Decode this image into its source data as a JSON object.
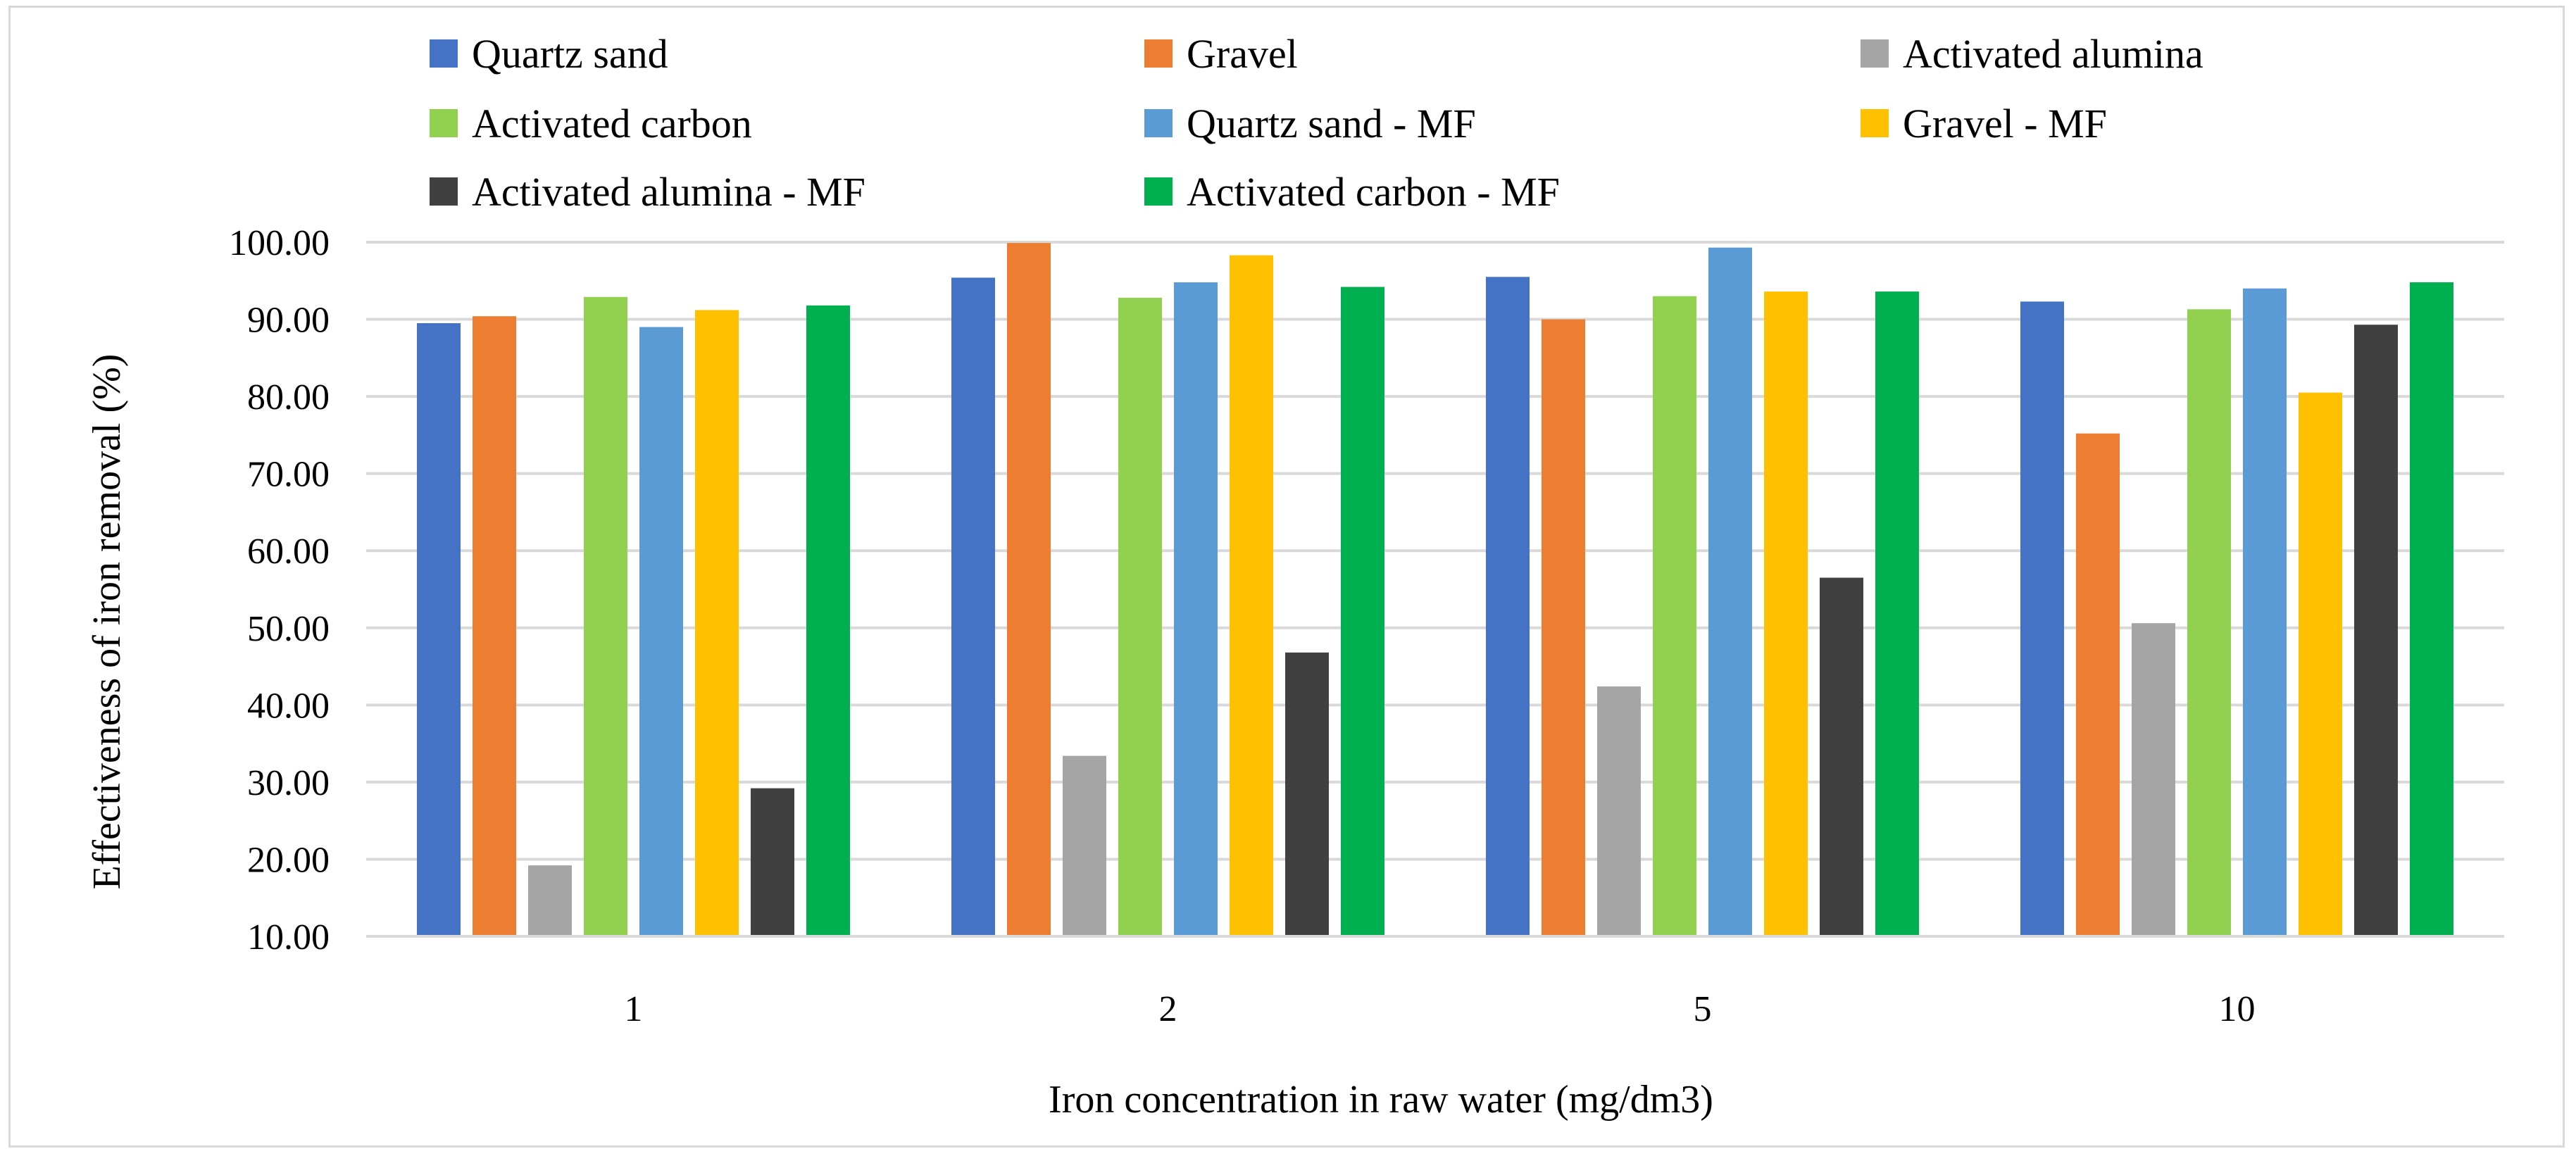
{
  "chart_data": {
    "type": "bar",
    "title": "",
    "xlabel": "Iron concentration in raw water (mg/dm3)",
    "ylabel": "Effectiveness of iron removal (%)",
    "categories": [
      "1",
      "2",
      "5",
      "10"
    ],
    "ylim": [
      10,
      100
    ],
    "yticks": [
      "10.00",
      "20.00",
      "30.00",
      "40.00",
      "50.00",
      "60.00",
      "70.00",
      "80.00",
      "90.00",
      "100.00"
    ],
    "grid": true,
    "legend_position": "top",
    "series": [
      {
        "name": "Quartz sand",
        "color": "#4472c4",
        "values": [
          89.5,
          95.4,
          95.5,
          92.3
        ]
      },
      {
        "name": "Gravel",
        "color": "#ed7d31",
        "values": [
          90.4,
          99.9,
          90.0,
          75.2
        ]
      },
      {
        "name": "Activated alumina",
        "color": "#a5a5a5",
        "values": [
          19.2,
          33.4,
          42.4,
          50.6
        ]
      },
      {
        "name": "Activated carbon",
        "color": "#92d050",
        "values": [
          92.9,
          92.8,
          93.0,
          91.3
        ]
      },
      {
        "name": "Quartz sand - MF",
        "color": "#5b9bd5",
        "values": [
          89.0,
          94.8,
          99.3,
          94.0
        ]
      },
      {
        "name": "Gravel - MF",
        "color": "#ffc000",
        "values": [
          91.2,
          98.3,
          93.6,
          80.5
        ]
      },
      {
        "name": "Activated alumina - MF",
        "color": "#404040",
        "values": [
          29.2,
          46.8,
          56.5,
          89.3
        ]
      },
      {
        "name": "Activated carbon - MF",
        "color": "#00b050",
        "values": [
          91.8,
          94.2,
          93.6,
          94.8
        ]
      }
    ]
  }
}
